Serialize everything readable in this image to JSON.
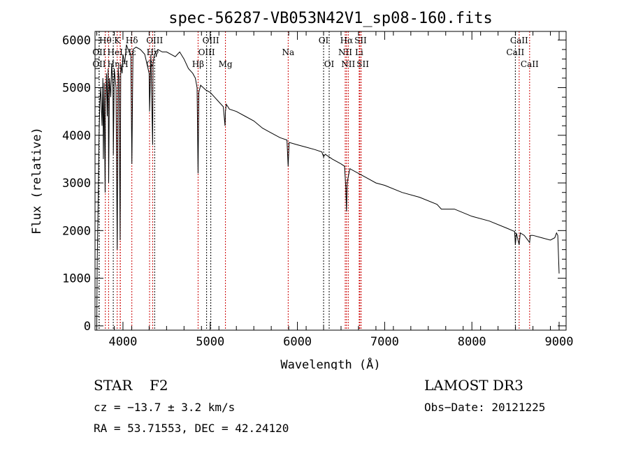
{
  "chart_data": {
    "type": "line",
    "title": "spec-56287-VB053N42V1_sp08-160.fits",
    "xlabel": "Wavelength (Å)",
    "ylabel": "Flux (relative)",
    "xlim": [
      3680,
      9080
    ],
    "ylim": [
      -90,
      6180
    ],
    "xticks": [
      4000,
      5000,
      6000,
      7000,
      8000,
      9000
    ],
    "yticks": [
      0,
      1000,
      2000,
      3000,
      4000,
      5000,
      6000
    ],
    "series": [
      {
        "name": "spectrum",
        "x": [
          3700,
          3705,
          3715,
          3725,
          3735,
          3745,
          3760,
          3770,
          3775,
          3785,
          3795,
          3800,
          3812,
          3820,
          3830,
          3836,
          3845,
          3860,
          3870,
          3885,
          3890,
          3900,
          3920,
          3934,
          3945,
          3955,
          3968,
          3975,
          3990,
          4000,
          4020,
          4040,
          4060,
          4090,
          4102,
          4115,
          4150,
          4200,
          4250,
          4300,
          4305,
          4320,
          4340,
          4345,
          4360,
          4400,
          4450,
          4500,
          4550,
          4600,
          4650,
          4700,
          4750,
          4800,
          4830,
          4850,
          4861,
          4870,
          4890,
          4920,
          4950,
          5000,
          5050,
          5100,
          5150,
          5170,
          5175,
          5185,
          5220,
          5300,
          5400,
          5500,
          5600,
          5700,
          5800,
          5880,
          5894,
          5905,
          6000,
          6100,
          6200,
          6280,
          6300,
          6320,
          6400,
          6500,
          6540,
          6555,
          6563,
          6570,
          6600,
          6700,
          6800,
          6900,
          7000,
          7200,
          7400,
          7600,
          7650,
          7800,
          8000,
          8200,
          8400,
          8490,
          8498,
          8510,
          8542,
          8555,
          8600,
          8662,
          8670,
          8700,
          8800,
          8900,
          8950,
          8970,
          8985,
          9000
        ],
        "y": [
          0,
          1300,
          2600,
          3900,
          4700,
          5000,
          4200,
          5200,
          3500,
          5100,
          2800,
          4700,
          5300,
          4400,
          5400,
          3000,
          5200,
          4800,
          5500,
          5000,
          3600,
          5400,
          5000,
          1600,
          5400,
          5200,
          1800,
          5500,
          5300,
          5700,
          5500,
          5900,
          5800,
          5700,
          3400,
          5800,
          5850,
          5800,
          5700,
          5300,
          4500,
          5700,
          3800,
          5500,
          5700,
          5800,
          5750,
          5750,
          5700,
          5650,
          5750,
          5600,
          5400,
          5300,
          5200,
          5000,
          3200,
          4900,
          5050,
          5000,
          4950,
          4900,
          4800,
          4700,
          4600,
          4200,
          4500,
          4650,
          4550,
          4500,
          4400,
          4300,
          4150,
          4050,
          3950,
          3900,
          3350,
          3850,
          3800,
          3750,
          3700,
          3650,
          3550,
          3600,
          3500,
          3400,
          3350,
          2900,
          2400,
          3000,
          3300,
          3200,
          3100,
          3000,
          2950,
          2800,
          2700,
          2550,
          2450,
          2450,
          2300,
          2200,
          2050,
          1980,
          1700,
          1950,
          1700,
          1950,
          1900,
          1750,
          1900,
          1900,
          1850,
          1800,
          1850,
          1950,
          1900,
          1100
        ]
      }
    ],
    "lines": [
      {
        "label": "OII",
        "wl": 3727,
        "row": 2,
        "color": "#000000"
      },
      {
        "label": "Hθ",
        "wl": 3798,
        "row": 0,
        "color": "#cc0000"
      },
      {
        "label": "OII",
        "wl": 3727,
        "row": 1,
        "color": "#000000"
      },
      {
        "label": "Hη",
        "wl": 3835,
        "row": 2,
        "color": "#cc0000"
      },
      {
        "label": "K",
        "wl": 3934,
        "row": 0,
        "color": "#cc0000"
      },
      {
        "label": "HeI",
        "wl": 3889,
        "row": 1,
        "color": "#000000"
      },
      {
        "label": "H",
        "wl": 3968,
        "row": 2,
        "color": "#cc0000"
      },
      {
        "label": "Hε",
        "wl": 3970,
        "row": 1,
        "color": "#cc0000"
      },
      {
        "label": "Hδ",
        "wl": 4102,
        "row": 0,
        "color": "#cc0000"
      },
      {
        "label": "G",
        "wl": 4305,
        "row": 2,
        "color": "#cc0000"
      },
      {
        "label": "Hγ",
        "wl": 4340,
        "row": 1,
        "color": "#cc0000"
      },
      {
        "label": "OIII",
        "wl": 4363,
        "row": 0,
        "color": "#000000"
      },
      {
        "label": "Hβ",
        "wl": 4861,
        "row": 2,
        "color": "#cc0000"
      },
      {
        "label": "OIII",
        "wl": 4959,
        "row": 1,
        "color": "#000000"
      },
      {
        "label": "OIII",
        "wl": 5007,
        "row": 0,
        "color": "#000000"
      },
      {
        "label": "Mg",
        "wl": 5175,
        "row": 2,
        "color": "#cc0000"
      },
      {
        "label": "Na",
        "wl": 5894,
        "row": 1,
        "color": "#cc0000"
      },
      {
        "label": "OI",
        "wl": 6300,
        "row": 0,
        "color": "#000000"
      },
      {
        "label": "OI",
        "wl": 6364,
        "row": 2,
        "color": "#000000"
      },
      {
        "label": "NII",
        "wl": 6548,
        "row": 1,
        "color": "#cc0000"
      },
      {
        "label": "Hα",
        "wl": 6563,
        "row": 0,
        "color": "#cc0000"
      },
      {
        "label": "NII",
        "wl": 6583,
        "row": 2,
        "color": "#cc0000"
      },
      {
        "label": "Li",
        "wl": 6708,
        "row": 1,
        "color": "#cc0000"
      },
      {
        "label": "SII",
        "wl": 6716,
        "row": 0,
        "color": "#cc0000"
      },
      {
        "label": "SII",
        "wl": 6731,
        "row": 2,
        "color": "#cc0000"
      },
      {
        "label": "CaII",
        "wl": 8498,
        "row": 1,
        "color": "#000000"
      },
      {
        "label": "CaII",
        "wl": 8542,
        "row": 0,
        "color": "#cc0000"
      },
      {
        "label": "CaII",
        "wl": 8662,
        "row": 2,
        "color": "#cc0000"
      }
    ]
  },
  "info": {
    "class": "STAR",
    "subclass": "F2",
    "cz": "cz = −13.7 ± 3.2 km/s",
    "radec": "RA =  53.71553, DEC =  42.24120",
    "survey": "LAMOST DR3",
    "obsdate": "Obs−Date: 20121225"
  }
}
